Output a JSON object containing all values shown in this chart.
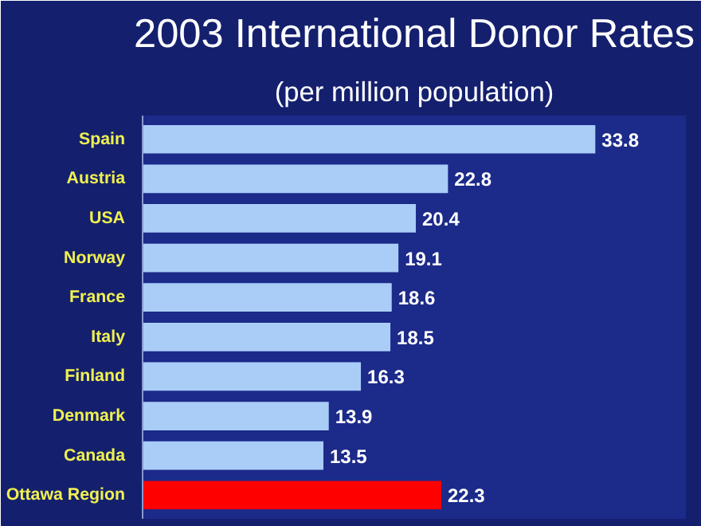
{
  "chart_data": {
    "type": "bar",
    "orientation": "horizontal",
    "title": "2003 International Donor Rates",
    "subtitle": "(per million population)",
    "categories": [
      "Spain",
      "Austria",
      "USA",
      "Norway",
      "France",
      "Italy",
      "Finland",
      "Denmark",
      "Canada",
      "Ottawa Region"
    ],
    "values": [
      33.8,
      22.8,
      20.4,
      19.1,
      18.6,
      18.5,
      16.3,
      13.9,
      13.5,
      22.3
    ],
    "colors": [
      "#aacdf8",
      "#aacdf8",
      "#aacdf8",
      "#aacdf8",
      "#aacdf8",
      "#aacdf8",
      "#aacdf8",
      "#aacdf8",
      "#aacdf8",
      "#ff0000"
    ],
    "data_labels": true,
    "grid": false
  }
}
